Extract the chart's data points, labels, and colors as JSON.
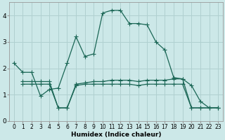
{
  "xlabel": "Humidex (Indice chaleur)",
  "background_color": "#cce8e8",
  "grid_color": "#b0d0d0",
  "line_color": "#1a6655",
  "line1_x": [
    0,
    1,
    2,
    3,
    4,
    5,
    6,
    7,
    8,
    9,
    10,
    11,
    12,
    13,
    14,
    15,
    16,
    17,
    18,
    19,
    20,
    21,
    22,
    23
  ],
  "line1_y": [
    2.2,
    1.85,
    1.85,
    0.95,
    1.2,
    1.25,
    2.2,
    3.2,
    2.45,
    2.55,
    4.1,
    4.2,
    4.2,
    3.7,
    3.7,
    3.65,
    3.0,
    2.7,
    1.65,
    1.6,
    1.35,
    0.75,
    0.5,
    0.5
  ],
  "line2_x": [
    1,
    2,
    3,
    4,
    5,
    6,
    7,
    8,
    9,
    10,
    11,
    12,
    13,
    14,
    15,
    16,
    17,
    18,
    19,
    20,
    21,
    22,
    23
  ],
  "line2_y": [
    1.5,
    1.5,
    1.5,
    1.5,
    0.5,
    0.5,
    1.4,
    1.45,
    1.5,
    1.5,
    1.55,
    1.55,
    1.55,
    1.5,
    1.55,
    1.55,
    1.55,
    1.6,
    1.6,
    0.5,
    0.5,
    0.5,
    0.5
  ],
  "line3_x": [
    1,
    2,
    3,
    4,
    5,
    6,
    7,
    8,
    9,
    10,
    11,
    12,
    13,
    14,
    15,
    16,
    17,
    18,
    19,
    20,
    21,
    22,
    23
  ],
  "line3_y": [
    1.4,
    1.4,
    1.4,
    1.4,
    0.5,
    0.5,
    1.35,
    1.4,
    1.4,
    1.4,
    1.4,
    1.4,
    1.4,
    1.35,
    1.4,
    1.4,
    1.4,
    1.4,
    1.4,
    0.5,
    0.5,
    0.5,
    0.5
  ],
  "ylim": [
    0,
    4.5
  ],
  "xlim": [
    -0.5,
    23.5
  ],
  "yticks": [
    0,
    1,
    2,
    3,
    4
  ],
  "xticks": [
    0,
    1,
    2,
    3,
    4,
    5,
    6,
    7,
    8,
    9,
    10,
    11,
    12,
    13,
    14,
    15,
    16,
    17,
    18,
    19,
    20,
    21,
    22,
    23
  ],
  "xlabel_fontsize": 6.5,
  "tick_fontsize": 5.5,
  "ytick_fontsize": 6.5,
  "marker_size": 2.5,
  "line_width": 0.9
}
